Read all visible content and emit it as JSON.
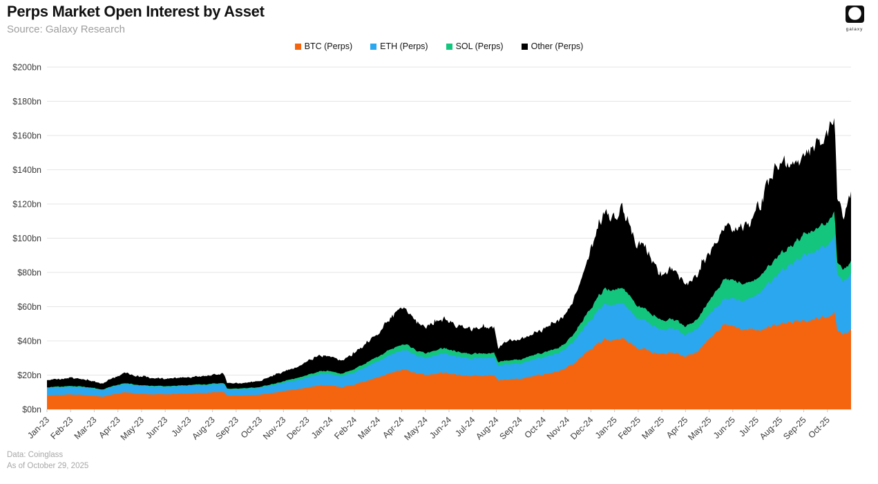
{
  "header": {
    "title": "Perps Market Open Interest by Asset",
    "subtitle": "Source: Galaxy Research",
    "logo_text": "galaxy"
  },
  "legend": [
    {
      "label": "BTC (Perps)",
      "color": "#f5640f"
    },
    {
      "label": "ETH (Perps)",
      "color": "#2ba7f0"
    },
    {
      "label": "SOL (Perps)",
      "color": "#14c57e"
    },
    {
      "label": "Other (Perps)",
      "color": "#000000"
    }
  ],
  "footer": {
    "line1": "Data: Coinglass",
    "line2": "As of October 29, 2025"
  },
  "chart_data": {
    "type": "area",
    "stacked": true,
    "title": "Perps Market Open Interest by Asset",
    "unit": "USD billions",
    "ylim": [
      0,
      200
    ],
    "grid": "horizontal",
    "legend_position": "top",
    "y_tick_labels": [
      "$0bn",
      "$20bn",
      "$40bn",
      "$60bn",
      "$80bn",
      "$100bn",
      "$120bn",
      "$140bn",
      "$160bn",
      "$180bn",
      "$200bn"
    ],
    "x_tick_labels": [
      "Jan-23",
      "Feb-23",
      "Mar-23",
      "Apr-23",
      "May-23",
      "Jun-23",
      "Jul-23",
      "Aug-23",
      "Sep-23",
      "Oct-23",
      "Nov-23",
      "Dec-23",
      "Jan-24",
      "Feb-24",
      "Mar-24",
      "Apr-24",
      "May-24",
      "Jun-24",
      "Jul-24",
      "Aug-24",
      "Sep-24",
      "Oct-24",
      "Nov-24",
      "Dec-24",
      "Jan-25",
      "Feb-25",
      "Mar-25",
      "Apr-25",
      "May-25",
      "Jun-25",
      "Jul-25",
      "Aug-25",
      "Sep-25",
      "Oct-25"
    ],
    "series_names": [
      "BTC (Perps)",
      "ETH (Perps)",
      "SOL (Perps)",
      "Other (Perps)"
    ],
    "colors": {
      "btc": "#f5640f",
      "eth": "#2ba7f0",
      "sol": "#14c57e",
      "other": "#000000"
    },
    "points_columns": [
      "month_index_from_Jan23",
      "btc_bn",
      "eth_bn",
      "sol_bn",
      "other_bn"
    ],
    "points": [
      [
        0.0,
        8.0,
        4.4,
        0.4,
        4.2
      ],
      [
        0.5,
        8.3,
        4.5,
        0.4,
        4.4
      ],
      [
        1.0,
        8.6,
        4.6,
        0.4,
        4.6
      ],
      [
        1.5,
        8.4,
        4.4,
        0.4,
        4.3
      ],
      [
        2.0,
        8.0,
        4.2,
        0.4,
        3.9
      ],
      [
        2.3,
        7.2,
        3.9,
        0.3,
        3.3
      ],
      [
        2.8,
        8.8,
        4.6,
        0.4,
        4.7
      ],
      [
        3.3,
        9.8,
        4.9,
        0.5,
        6.3
      ],
      [
        4.0,
        9.0,
        4.6,
        0.4,
        4.8
      ],
      [
        5.0,
        8.8,
        4.4,
        0.4,
        4.4
      ],
      [
        6.0,
        9.3,
        4.5,
        0.4,
        4.6
      ],
      [
        7.0,
        9.9,
        4.6,
        0.5,
        5.0
      ],
      [
        7.5,
        10.2,
        4.7,
        0.5,
        5.2
      ],
      [
        7.62,
        8.0,
        3.7,
        0.4,
        3.1
      ],
      [
        8.5,
        8.2,
        3.8,
        0.4,
        3.2
      ],
      [
        9.0,
        8.6,
        4.0,
        0.5,
        3.5
      ],
      [
        10.0,
        10.5,
        4.8,
        0.9,
        5.3
      ],
      [
        11.0,
        12.6,
        5.8,
        1.5,
        7.6
      ],
      [
        11.5,
        14.0,
        6.3,
        1.8,
        8.9
      ],
      [
        12.0,
        14.2,
        6.5,
        1.8,
        8.5
      ],
      [
        12.45,
        13.0,
        6.1,
        1.6,
        7.6
      ],
      [
        13.0,
        14.5,
        7.0,
        2.0,
        9.0
      ],
      [
        14.0,
        19.0,
        9.5,
        2.8,
        14.0
      ],
      [
        14.7,
        22.0,
        11.0,
        3.3,
        19.0
      ],
      [
        15.2,
        23.0,
        11.5,
        3.4,
        21.0
      ],
      [
        15.6,
        21.0,
        10.5,
        3.0,
        17.0
      ],
      [
        16.0,
        20.0,
        10.0,
        2.8,
        15.5
      ],
      [
        16.8,
        21.5,
        11.3,
        3.1,
        18.0
      ],
      [
        17.5,
        20.0,
        10.5,
        2.8,
        15.0
      ],
      [
        18.0,
        19.5,
        10.2,
        2.7,
        14.0
      ],
      [
        18.9,
        20.0,
        10.4,
        2.7,
        14.2
      ],
      [
        19.08,
        17.0,
        8.5,
        2.2,
        8.0
      ],
      [
        19.4,
        17.5,
        9.0,
        2.3,
        10.8
      ],
      [
        20.0,
        18.0,
        9.0,
        2.4,
        11.5
      ],
      [
        21.0,
        20.5,
        10.0,
        2.8,
        13.5
      ],
      [
        21.8,
        23.0,
        11.0,
        3.2,
        16.0
      ],
      [
        22.3,
        27.0,
        13.0,
        4.3,
        20.0
      ],
      [
        22.8,
        33.0,
        16.0,
        6.0,
        30.0
      ],
      [
        23.3,
        38.0,
        19.5,
        8.0,
        40.0
      ],
      [
        23.6,
        41.0,
        21.0,
        9.0,
        47.0
      ],
      [
        24.0,
        40.0,
        20.5,
        8.8,
        44.0
      ],
      [
        24.4,
        41.0,
        20.5,
        8.8,
        45.0
      ],
      [
        25.0,
        36.0,
        17.5,
        7.2,
        36.5
      ],
      [
        25.5,
        34.0,
        16.0,
        6.5,
        33.0
      ],
      [
        26.0,
        32.0,
        14.0,
        5.5,
        27.0
      ],
      [
        26.5,
        33.0,
        14.0,
        5.5,
        28.0
      ],
      [
        27.0,
        31.0,
        12.5,
        4.8,
        23.5
      ],
      [
        27.5,
        33.0,
        13.5,
        5.5,
        25.0
      ],
      [
        28.0,
        41.0,
        14.0,
        8.0,
        28.0
      ],
      [
        28.7,
        50.0,
        15.0,
        12.0,
        30.0
      ],
      [
        29.0,
        48.0,
        16.0,
        11.0,
        30.0
      ],
      [
        29.5,
        47.0,
        17.0,
        10.0,
        34.0
      ],
      [
        30.0,
        46.0,
        20.0,
        9.5,
        40.0
      ],
      [
        30.5,
        48.0,
        26.0,
        10.0,
        48.0
      ],
      [
        31.0,
        50.0,
        30.0,
        10.5,
        53.0
      ],
      [
        31.5,
        51.0,
        34.0,
        11.0,
        49.0
      ],
      [
        32.0,
        52.0,
        38.0,
        12.0,
        47.0
      ],
      [
        32.5,
        53.0,
        40.0,
        12.5,
        48.0
      ],
      [
        33.0,
        54.0,
        42.0,
        13.5,
        48.5
      ],
      [
        33.3,
        57.0,
        44.0,
        14.0,
        58.0
      ],
      [
        33.42,
        46.0,
        32.0,
        7.5,
        36.0
      ],
      [
        33.7,
        44.0,
        31.0,
        7.0,
        32.0
      ],
      [
        34.0,
        46.0,
        33.0,
        7.5,
        38.5
      ]
    ]
  }
}
